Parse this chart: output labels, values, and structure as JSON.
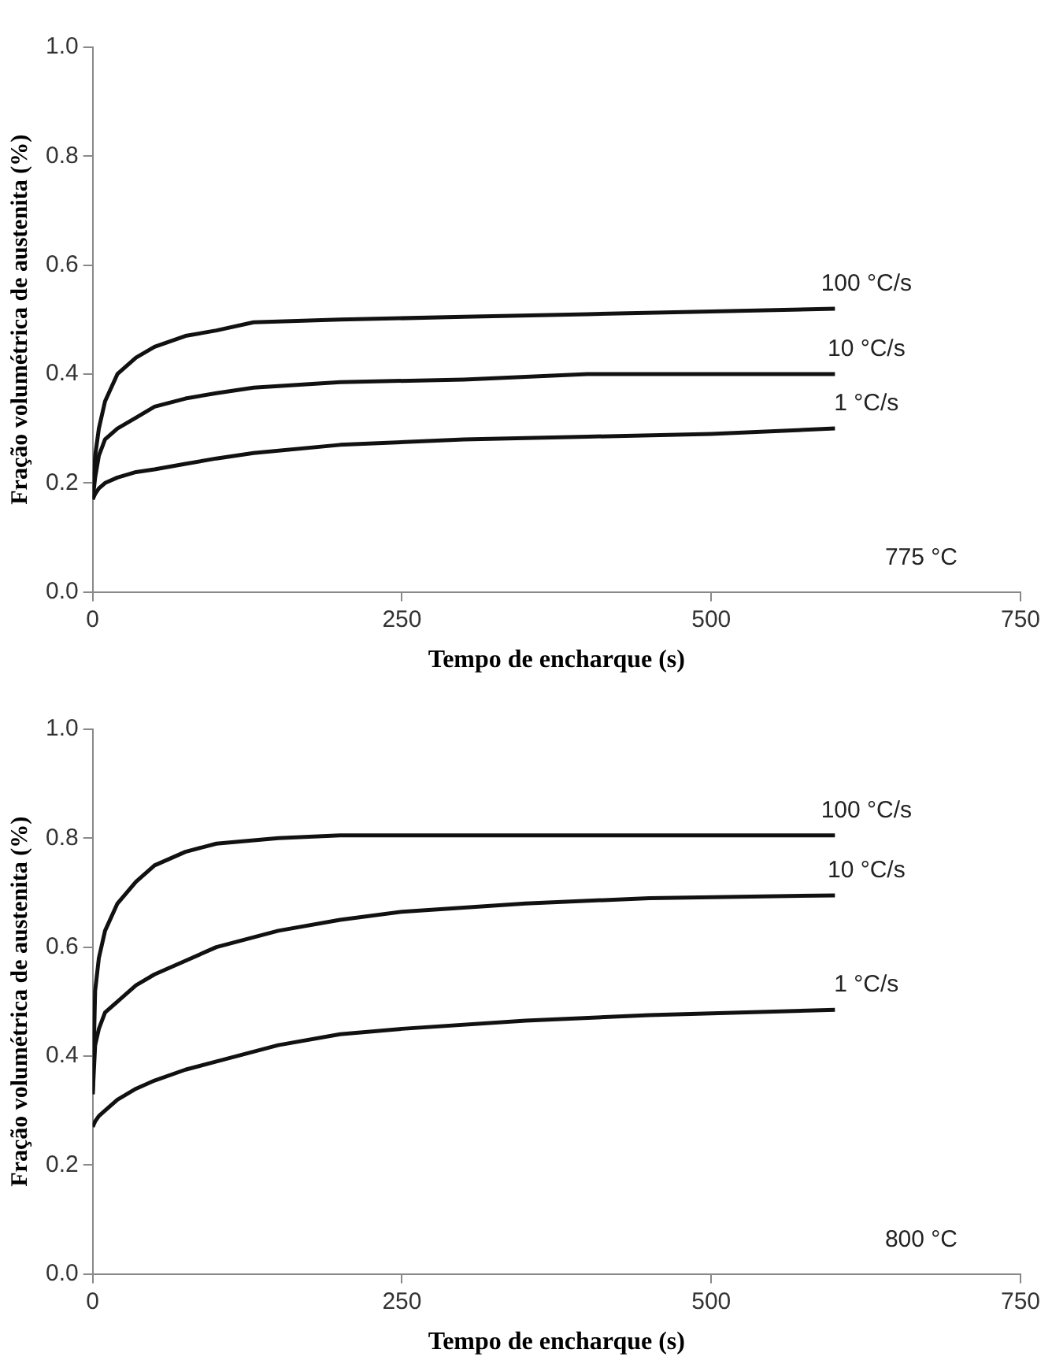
{
  "chart_data": [
    {
      "type": "line",
      "xlabel": "Tempo de encharque (s)",
      "ylabel": "Fração volumétrica de austenita (%)",
      "xlim": [
        0,
        750
      ],
      "xticks": [
        0,
        250,
        500,
        750
      ],
      "ylim": [
        0,
        1
      ],
      "yticks": [
        {
          "value": 0,
          "label": "0.0"
        },
        {
          "value": 0.2,
          "label": "0.2"
        },
        {
          "value": 0.4,
          "label": "0.4"
        },
        {
          "value": 0.6,
          "label": "0.6"
        },
        {
          "value": 0.8,
          "label": "0.8"
        },
        {
          "value": 1,
          "label": "1.0"
        }
      ],
      "grid": false,
      "legend": false,
      "marker": "none",
      "line_style": "solid",
      "annotations": [
        "775 °C"
      ],
      "x": [
        0,
        2,
        5,
        10,
        20,
        35,
        50,
        75,
        100,
        130,
        200,
        300,
        400,
        500,
        600
      ],
      "series": [
        {
          "name": "100 °C/s",
          "color": "#111111",
          "values": [
            0.17,
            0.25,
            0.3,
            0.35,
            0.4,
            0.43,
            0.45,
            0.47,
            0.48,
            0.495,
            0.5,
            0.505,
            0.51,
            0.515,
            0.52
          ]
        },
        {
          "name": "10 °C/s",
          "color": "#111111",
          "values": [
            0.17,
            0.21,
            0.25,
            0.28,
            0.3,
            0.32,
            0.34,
            0.355,
            0.365,
            0.375,
            0.385,
            0.39,
            0.4,
            0.4,
            0.4
          ]
        },
        {
          "name": "1 °C/s",
          "color": "#111111",
          "values": [
            0.17,
            0.18,
            0.19,
            0.2,
            0.21,
            0.22,
            0.225,
            0.235,
            0.245,
            0.255,
            0.27,
            0.28,
            0.285,
            0.29,
            0.3
          ]
        }
      ]
    },
    {
      "type": "line",
      "xlabel": "Tempo de encharque (s)",
      "ylabel": "Fração volumétrica de austenita (%)",
      "xlim": [
        0,
        750
      ],
      "xticks": [
        0,
        250,
        500,
        750
      ],
      "ylim": [
        0,
        1
      ],
      "yticks": [
        {
          "value": 0,
          "label": "0.0"
        },
        {
          "value": 0.2,
          "label": "0.2"
        },
        {
          "value": 0.4,
          "label": "0.4"
        },
        {
          "value": 0.6,
          "label": "0.6"
        },
        {
          "value": 0.8,
          "label": "0.8"
        },
        {
          "value": 1,
          "label": "1.0"
        }
      ],
      "grid": false,
      "legend": false,
      "marker": "none",
      "line_style": "solid",
      "annotations": [
        "800 °C"
      ],
      "x": [
        0,
        2,
        5,
        10,
        20,
        35,
        50,
        75,
        100,
        150,
        200,
        250,
        350,
        450,
        600
      ],
      "series": [
        {
          "name": "100 °C/s",
          "color": "#111111",
          "values": [
            0.33,
            0.52,
            0.58,
            0.63,
            0.68,
            0.72,
            0.75,
            0.775,
            0.79,
            0.8,
            0.805,
            0.805,
            0.805,
            0.805,
            0.805
          ]
        },
        {
          "name": "10 °C/s",
          "color": "#111111",
          "values": [
            0.33,
            0.42,
            0.45,
            0.48,
            0.5,
            0.53,
            0.55,
            0.575,
            0.6,
            0.63,
            0.65,
            0.665,
            0.68,
            0.69,
            0.695
          ]
        },
        {
          "name": "1 °C/s",
          "color": "#111111",
          "values": [
            0.27,
            0.28,
            0.29,
            0.3,
            0.32,
            0.34,
            0.355,
            0.375,
            0.39,
            0.42,
            0.44,
            0.45,
            0.465,
            0.475,
            0.485
          ]
        }
      ]
    }
  ]
}
